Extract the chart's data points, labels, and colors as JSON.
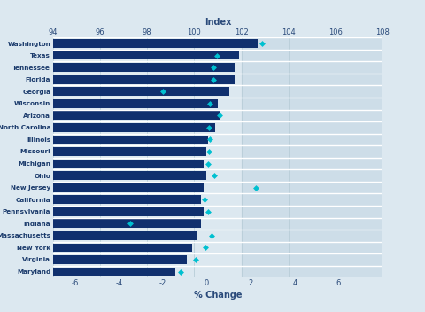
{
  "states": [
    "Washington",
    "Texas",
    "Tennessee",
    "Florida",
    "Georgia",
    "Wisconsin",
    "Arizona",
    "North Carolina",
    "Illinois",
    "Missouri",
    "Michigan",
    "Ohio",
    "New Jersey",
    "California",
    "Pennsylvania",
    "Indiana",
    "Massachusetts",
    "New York",
    "Virginia",
    "Maryland"
  ],
  "index_values": [
    102.7,
    101.9,
    101.7,
    101.7,
    101.5,
    101.0,
    101.1,
    100.9,
    100.6,
    100.5,
    100.4,
    100.5,
    100.4,
    100.3,
    100.4,
    100.3,
    100.1,
    99.9,
    99.7,
    99.2
  ],
  "pct_change": [
    2.5,
    0.47,
    0.3,
    0.3,
    -2.0,
    0.15,
    0.6,
    0.1,
    0.15,
    0.1,
    0.05,
    0.35,
    2.25,
    -0.1,
    0.05,
    -3.5,
    0.22,
    -0.05,
    -0.5,
    -1.2
  ],
  "bar_color": "#10306e",
  "marker_color": "#00c0d0",
  "bg_color": "#dce8f0",
  "right_bg": "#cddde8",
  "grid_color": "#b8cdd8",
  "white_sep": "#ffffff",
  "title": "Index",
  "xlabel": "% Change",
  "index_min": 94,
  "index_max": 108,
  "pct_min": -7,
  "pct_max": 8,
  "index_ticks": [
    94,
    96,
    98,
    100,
    102,
    104,
    106,
    108
  ],
  "pct_ticks": [
    -6,
    -4,
    -2,
    0,
    2,
    4,
    6
  ]
}
